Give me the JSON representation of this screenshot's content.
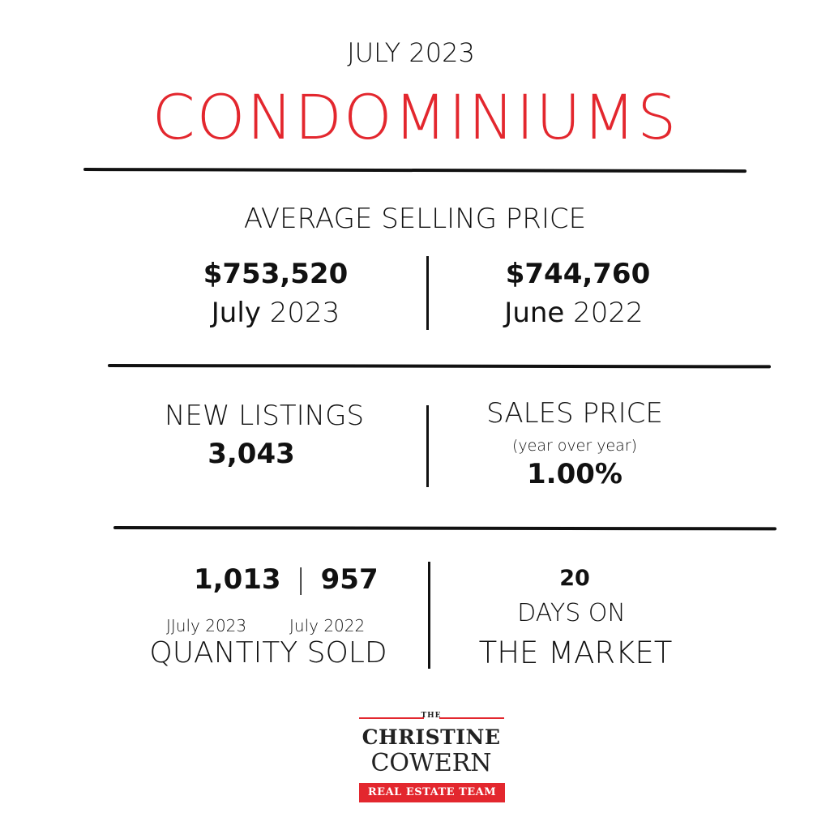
{
  "header": {
    "month": "JULY 2023",
    "title": "CONDOMINIUMS",
    "title_color": "#e3272e"
  },
  "avg_selling_price": {
    "heading": "AVERAGE SELLING PRICE",
    "current_value": "$753,520",
    "current_month": "July",
    "current_year": "2023",
    "previous_value": "$744,760",
    "previous_month": "June",
    "previous_year": "2022"
  },
  "new_listings": {
    "heading": "NEW LISTINGS",
    "value": "3,043"
  },
  "sales_price": {
    "heading": "SALES PRICE",
    "subheading": "(year over year)",
    "value": "1.00%"
  },
  "quantity_sold": {
    "current_value": "1,013",
    "separator": "|",
    "previous_value": "957",
    "current_label": "JJuly 2023",
    "previous_label": "July 2022",
    "heading": "QUANTITY SOLD"
  },
  "days_on_market": {
    "value": "20",
    "line1": "DAYS ON",
    "line2": "THE MARKET"
  },
  "logo": {
    "the": "THE",
    "line1": "CHRISTINE",
    "line2": "COWERN",
    "badge": "REAL ESTATE TEAM",
    "accent_color": "#e3272e"
  }
}
